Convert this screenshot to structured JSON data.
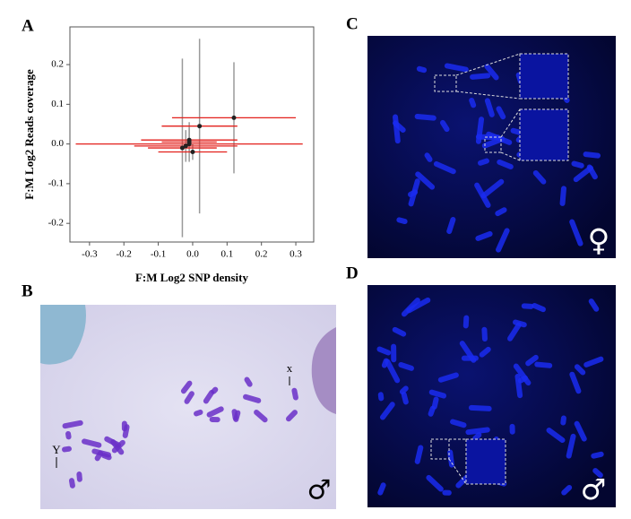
{
  "panels": [
    {
      "label": "A"
    },
    {
      "label": "B"
    },
    {
      "label": "C"
    },
    {
      "label": "D"
    }
  ],
  "chart_data": {
    "type": "scatter",
    "xlabel": "F:M Log2 SNP density",
    "ylabel": "F:M Log2 Reads coverage",
    "xlim": [
      -0.357,
      0.352
    ],
    "ylim": [
      -0.247,
      0.295
    ],
    "xticks": [
      -0.3,
      -0.2,
      -0.1,
      {
        "value": 0,
        "label": "0.0"
      },
      0.1,
      0.2,
      0.3
    ],
    "yticks": [
      -0.2,
      -0.1,
      {
        "value": 0,
        "label": "0.0"
      },
      0.1,
      0.2
    ],
    "xerr_color": "#e3201c",
    "yerr_color": "#9a9a9a",
    "marker_color": "#222222",
    "series": [
      {
        "x": [
          0.12,
          -0.01,
          -0.03,
          0.02,
          -0.01,
          -0.02,
          0.0,
          -0.01
        ],
        "y": [
          0.066,
          0.0,
          -0.01,
          0.045,
          0.01,
          -0.005,
          -0.02,
          0.005
        ],
        "xerr": [
          0.18,
          0.33,
          0.1,
          0.11,
          0.14,
          0.15,
          0.1,
          0.08
        ],
        "yerr": [
          0.14,
          0.01,
          0.225,
          0.22,
          0.03,
          0.04,
          0.02,
          0.05
        ]
      }
    ]
  },
  "annotations": {
    "b_x": "x",
    "b_y": "Y",
    "c_sex": "♀",
    "d_sex": "♂",
    "b_sex": "♂"
  }
}
